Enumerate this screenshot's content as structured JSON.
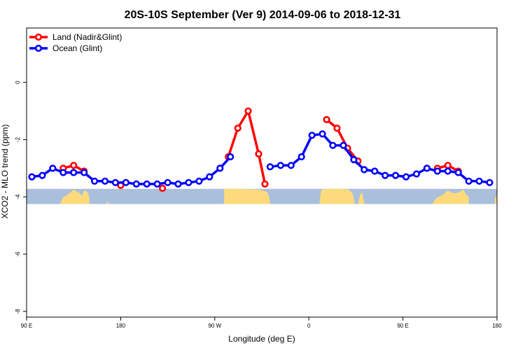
{
  "chart_data": {
    "type": "line",
    "title": "20S-10S September (Ver 9)   2014-09-06 to 2018-12-31",
    "xlabel": "Longitude (deg E)",
    "ylabel": "XCO2 - MLO trend (ppm)",
    "xlim": [
      90,
      540
    ],
    "ylim": [
      -8.2,
      1.9
    ],
    "x_ticks": [
      {
        "value": 90,
        "label": "90 E"
      },
      {
        "value": 180,
        "label": "180"
      },
      {
        "value": 270,
        "label": "90 W"
      },
      {
        "value": 360,
        "label": "0"
      },
      {
        "value": 450,
        "label": "90 E"
      },
      {
        "value": 540,
        "label": "180"
      }
    ],
    "y_ticks": [
      {
        "value": 0,
        "label": "0"
      },
      {
        "value": -2,
        "label": "-2"
      },
      {
        "value": -4,
        "label": "-4"
      },
      {
        "value": -6,
        "label": "-6"
      },
      {
        "value": -8,
        "label": "-8"
      }
    ],
    "legend_position": "top-left",
    "series": [
      {
        "name": "Land (Nadir&Glint)",
        "color": "#ff0000",
        "segments": [
          [
            [
              125,
              -3.0
            ],
            [
              135,
              -2.9
            ],
            [
              145,
              -3.1
            ]
          ],
          [
            [
              180,
              -3.6
            ]
          ],
          [
            [
              220,
              -3.7
            ]
          ],
          [
            [
              283,
              -2.6
            ],
            [
              292,
              -1.6
            ],
            [
              302,
              -1.0
            ],
            [
              312,
              -2.5
            ],
            [
              318,
              -3.55
            ]
          ],
          [
            [
              377,
              -1.3
            ],
            [
              387,
              -1.6
            ],
            [
              397,
              -2.3
            ],
            [
              407,
              -2.75
            ]
          ],
          [
            [
              483,
              -3.0
            ],
            [
              493,
              -2.9
            ],
            [
              503,
              -3.1
            ]
          ]
        ]
      },
      {
        "name": "Ocean (Glint)",
        "color": "#0000ff",
        "segments": [
          [
            [
              95,
              -3.3
            ],
            [
              105,
              -3.25
            ],
            [
              115,
              -3.0
            ],
            [
              125,
              -3.15
            ],
            [
              135,
              -3.15
            ],
            [
              145,
              -3.15
            ],
            [
              155,
              -3.45
            ],
            [
              165,
              -3.45
            ],
            [
              175,
              -3.5
            ],
            [
              185,
              -3.5
            ],
            [
              195,
              -3.55
            ],
            [
              205,
              -3.55
            ],
            [
              215,
              -3.55
            ],
            [
              225,
              -3.5
            ],
            [
              235,
              -3.55
            ],
            [
              245,
              -3.5
            ],
            [
              255,
              -3.45
            ],
            [
              265,
              -3.3
            ],
            [
              275,
              -3.0
            ],
            [
              285,
              -2.6
            ]
          ],
          [
            [
              323,
              -2.95
            ],
            [
              333,
              -2.9
            ],
            [
              343,
              -2.9
            ],
            [
              353,
              -2.6
            ],
            [
              363,
              -1.85
            ],
            [
              373,
              -1.8
            ],
            [
              383,
              -2.2
            ],
            [
              393,
              -2.2
            ],
            [
              403,
              -2.7
            ],
            [
              413,
              -3.05
            ],
            [
              423,
              -3.1
            ],
            [
              433,
              -3.25
            ],
            [
              443,
              -3.25
            ],
            [
              453,
              -3.3
            ],
            [
              463,
              -3.2
            ],
            [
              473,
              -3.0
            ],
            [
              483,
              -3.1
            ],
            [
              493,
              -3.1
            ],
            [
              503,
              -3.15
            ],
            [
              513,
              -3.45
            ],
            [
              523,
              -3.45
            ],
            [
              533,
              -3.5
            ]
          ]
        ]
      }
    ],
    "map_strip": {
      "y_top": -3.72,
      "y_bottom": -4.25,
      "ocean_color": "#a9bfdc",
      "land_color": "#fddb7c",
      "land_regions": [
        {
          "x": [
            122,
            125,
            130,
            135,
            140,
            143,
            145,
            148,
            150,
            150,
            122
          ],
          "y_offset": [
            1,
            0.55,
            0.35,
            0.05,
            0.25,
            0.45,
            0.1,
            0.2,
            0.55,
            1,
            1
          ]
        },
        {
          "x": [
            166,
            168,
            168,
            166
          ],
          "y_offset": [
            1,
            0.8,
            1,
            1
          ]
        },
        {
          "x": [
            279,
            290,
            300,
            312,
            320,
            322,
            323,
            279
          ],
          "y_offset": [
            0,
            0,
            0.02,
            0.05,
            0.2,
            0.55,
            1,
            1
          ]
        },
        {
          "x": [
            370,
            372,
            380,
            390,
            398,
            402,
            404,
            370
          ],
          "y_offset": [
            1,
            0.05,
            0,
            0,
            0.05,
            0.3,
            1,
            1
          ]
        },
        {
          "x": [
            407,
            409,
            411,
            413,
            407
          ],
          "y_offset": [
            1,
            0.4,
            0.2,
            1,
            1
          ]
        },
        {
          "x": [
            478,
            482,
            488,
            493,
            498,
            503,
            508,
            510,
            513,
            513,
            478
          ],
          "y_offset": [
            1,
            0.6,
            0.4,
            0.1,
            0.3,
            0.25,
            0.05,
            0.35,
            0.5,
            1,
            1
          ]
        },
        {
          "x": [
            538,
            540,
            540,
            538
          ],
          "y_offset": [
            0.6,
            0.5,
            1,
            1
          ]
        }
      ]
    }
  }
}
